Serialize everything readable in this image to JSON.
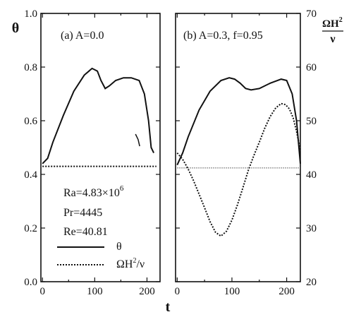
{
  "figure": {
    "left_axis_label": "θ",
    "bottom_axis_label": "t",
    "right_axis_label_top": "ΩH",
    "right_axis_label_sup": "2",
    "right_axis_label_bottom": "ν"
  },
  "legend": {
    "entries": [
      {
        "label": "θ",
        "style": "solid"
      },
      {
        "label": "ΩH²/ν",
        "style": "dotted"
      }
    ]
  },
  "chart_data": [
    {
      "type": "line",
      "title": "(a) A=0.0",
      "xlabel": "t",
      "ylabel": "θ",
      "xlim": [
        -3,
        225
      ],
      "ylim": [
        0.0,
        1.0
      ],
      "x_ticks": [
        "0",
        "100",
        "200"
      ],
      "y_ticks": [
        "0.0",
        "0.2",
        "0.4",
        "0.6",
        "0.8",
        "1.0"
      ],
      "annotations": [
        "Ra=4.83×10",
        "6",
        "Pr=4445",
        "Re=40.81"
      ],
      "series": [
        {
          "name": "θ",
          "style": "solid",
          "x": [
            0,
            10,
            20,
            40,
            60,
            80,
            95,
            105,
            112,
            120,
            128,
            140,
            155,
            170,
            185,
            195,
            203,
            208,
            213
          ],
          "y": [
            0.44,
            0.46,
            0.52,
            0.62,
            0.71,
            0.77,
            0.795,
            0.785,
            0.75,
            0.72,
            0.73,
            0.75,
            0.76,
            0.76,
            0.75,
            0.7,
            0.6,
            0.5,
            0.48
          ]
        },
        {
          "name": "ΩH²/ν",
          "style": "dotted",
          "x": [
            0,
            50,
            100,
            150,
            200,
            218
          ],
          "y": [
            41.5,
            41.5,
            41.5,
            41.5,
            41.5,
            41.5
          ]
        },
        {
          "name": "",
          "style": "fragment",
          "x": [
            178,
            183,
            186
          ],
          "y": [
            0.55,
            0.53,
            0.505
          ]
        }
      ]
    },
    {
      "type": "line",
      "title": "(b) A=0.3, f=0.95",
      "xlabel": "t",
      "ylabel": "ΩH²/ν",
      "xlim": [
        -3,
        225
      ],
      "ylim": [
        20,
        70
      ],
      "y2lim": [
        0.0,
        1.0
      ],
      "x_ticks": [
        "0",
        "100",
        "200"
      ],
      "y_ticks": [
        "20",
        "30",
        "40",
        "50",
        "60",
        "70"
      ],
      "series": [
        {
          "name": "θ",
          "style": "solid",
          "axis": "left",
          "x": [
            0,
            10,
            20,
            40,
            60,
            80,
            95,
            105,
            115,
            125,
            135,
            150,
            170,
            190,
            200,
            210,
            218,
            225
          ],
          "y": [
            0.435,
            0.48,
            0.54,
            0.64,
            0.71,
            0.75,
            0.76,
            0.755,
            0.74,
            0.72,
            0.715,
            0.72,
            0.74,
            0.755,
            0.75,
            0.7,
            0.6,
            0.44
          ]
        },
        {
          "name": "ΩH²/ν",
          "style": "dotted",
          "axis": "right",
          "x": [
            0,
            10,
            20,
            30,
            40,
            50,
            60,
            70,
            80,
            90,
            100,
            110,
            120,
            130,
            140,
            150,
            160,
            170,
            180,
            190,
            198,
            205,
            212,
            218,
            225
          ],
          "y": [
            44,
            42.8,
            41.0,
            38.8,
            36.3,
            33.8,
            31.2,
            29.2,
            28.5,
            29.4,
            31.5,
            34.3,
            37.5,
            40.8,
            43.5,
            46.0,
            48.6,
            50.8,
            52.4,
            53.2,
            53.0,
            52.2,
            50.5,
            48.0,
            44.5
          ]
        },
        {
          "name": "",
          "style": "faint",
          "axis": "right",
          "x": [
            0,
            50,
            100,
            150,
            200,
            225
          ],
          "y": [
            41.2,
            41.2,
            41.2,
            41.2,
            41.2,
            41.2
          ]
        }
      ]
    }
  ]
}
